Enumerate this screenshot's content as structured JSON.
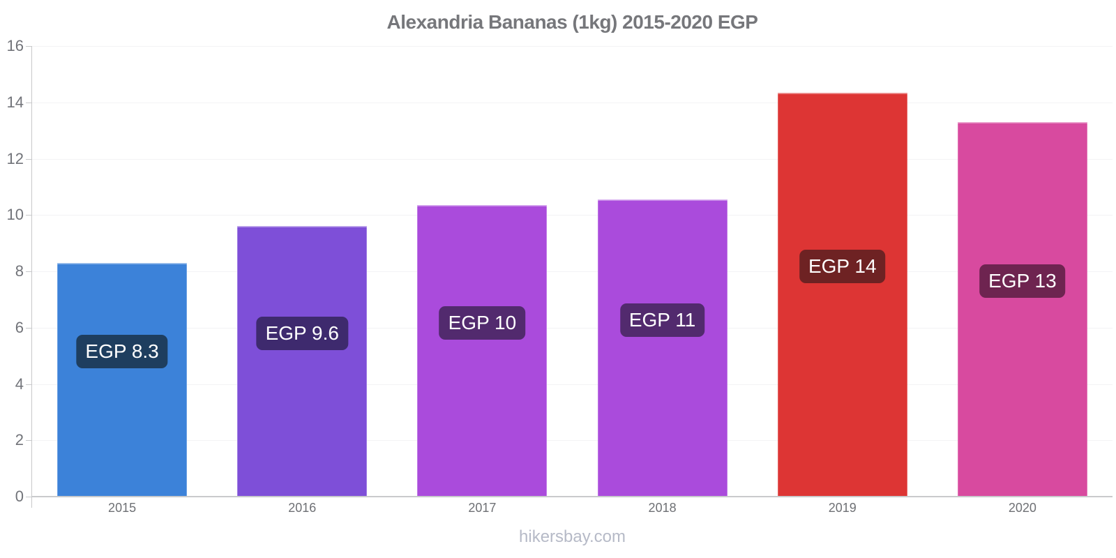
{
  "page": {
    "title": "Alexandria Bananas (1kg) 2015-2020 EGP",
    "watermark": "hikersbay.com"
  },
  "chart_data": {
    "type": "bar",
    "title": "Alexandria Bananas (1kg) 2015-2020 EGP",
    "categories": [
      "2015",
      "2016",
      "2017",
      "2018",
      "2019",
      "2020"
    ],
    "values": [
      8.3,
      9.6,
      10.35,
      10.55,
      14.35,
      13.3
    ],
    "bar_labels": [
      "EGP 8.3",
      "EGP 9.6",
      "EGP 10",
      "EGP 11",
      "EGP 14",
      "EGP 13"
    ],
    "bar_colors": [
      "#3c82d9",
      "#7e4fd8",
      "#aa4bdc",
      "#aa4bdc",
      "#dd3534",
      "#d84a9f"
    ],
    "label_bg_colors": [
      "#1e3e5f",
      "#3e2a6e",
      "#522a6e",
      "#522a6e",
      "#6e2223",
      "#6e2450"
    ],
    "currency": "EGP",
    "xlabel": "",
    "ylabel": "",
    "ylim": [
      0,
      16
    ],
    "yticks": [
      0,
      2,
      4,
      6,
      8,
      10,
      12,
      14,
      16
    ],
    "grid": true,
    "legend": false,
    "watermark": "hikersbay.com"
  },
  "colors": {
    "title_text": "#76777b",
    "y_tick_text": "#717379",
    "x_tick_text": "#6e7074",
    "grid_line": "#f3f3f5",
    "axis_line": "#c9cacc",
    "bar_value_text": "#ffffff",
    "watermark_text": "#b6bac7",
    "background": "#ffffff"
  }
}
